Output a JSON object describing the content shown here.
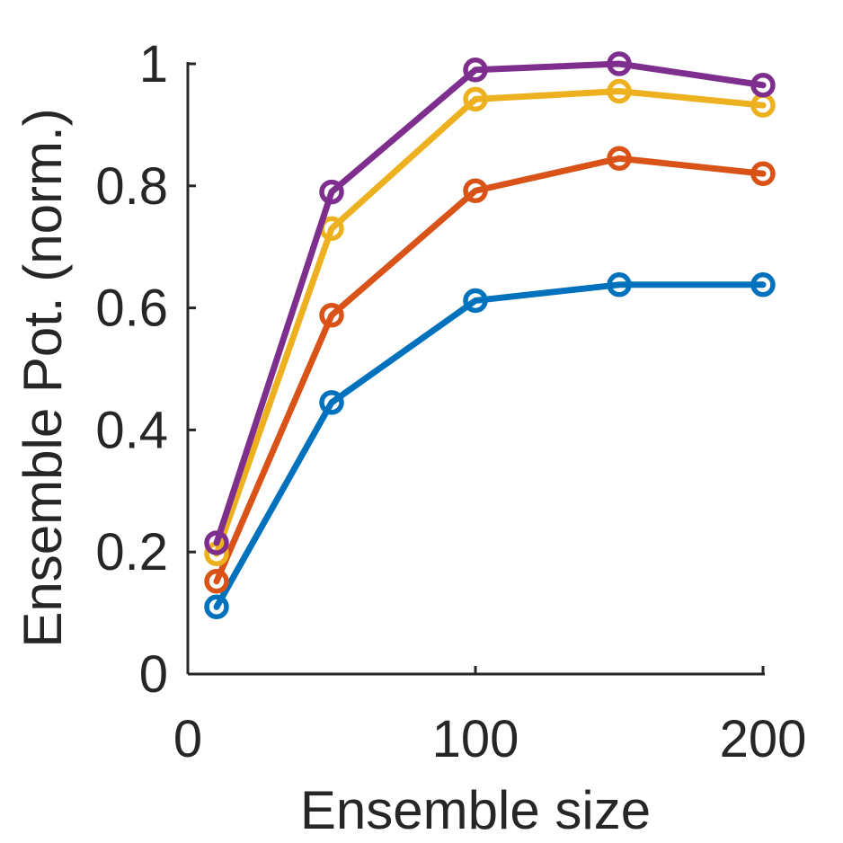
{
  "chart_data": {
    "type": "line",
    "title": "",
    "xlabel": "Ensemble size",
    "ylabel": "Ensemble Pot. (norm.)",
    "xlim": [
      0,
      200
    ],
    "ylim": [
      0,
      1
    ],
    "xticks": [
      "0",
      "100",
      "200"
    ],
    "yticks": [
      "0",
      "0.2",
      "0.4",
      "0.6",
      "0.8",
      "1"
    ],
    "x": [
      10,
      50,
      100,
      150,
      200
    ],
    "grid": false,
    "series": [
      {
        "color": "#0072BD",
        "values": [
          0.11,
          0.445,
          0.612,
          0.638,
          0.638
        ]
      },
      {
        "color": "#D95319",
        "values": [
          0.152,
          0.588,
          0.792,
          0.845,
          0.82
        ]
      },
      {
        "color": "#EDB120",
        "values": [
          0.197,
          0.73,
          0.942,
          0.955,
          0.932
        ]
      },
      {
        "color": "#7E2F8E",
        "values": [
          0.215,
          0.79,
          0.99,
          1.0,
          0.965
        ]
      }
    ]
  }
}
